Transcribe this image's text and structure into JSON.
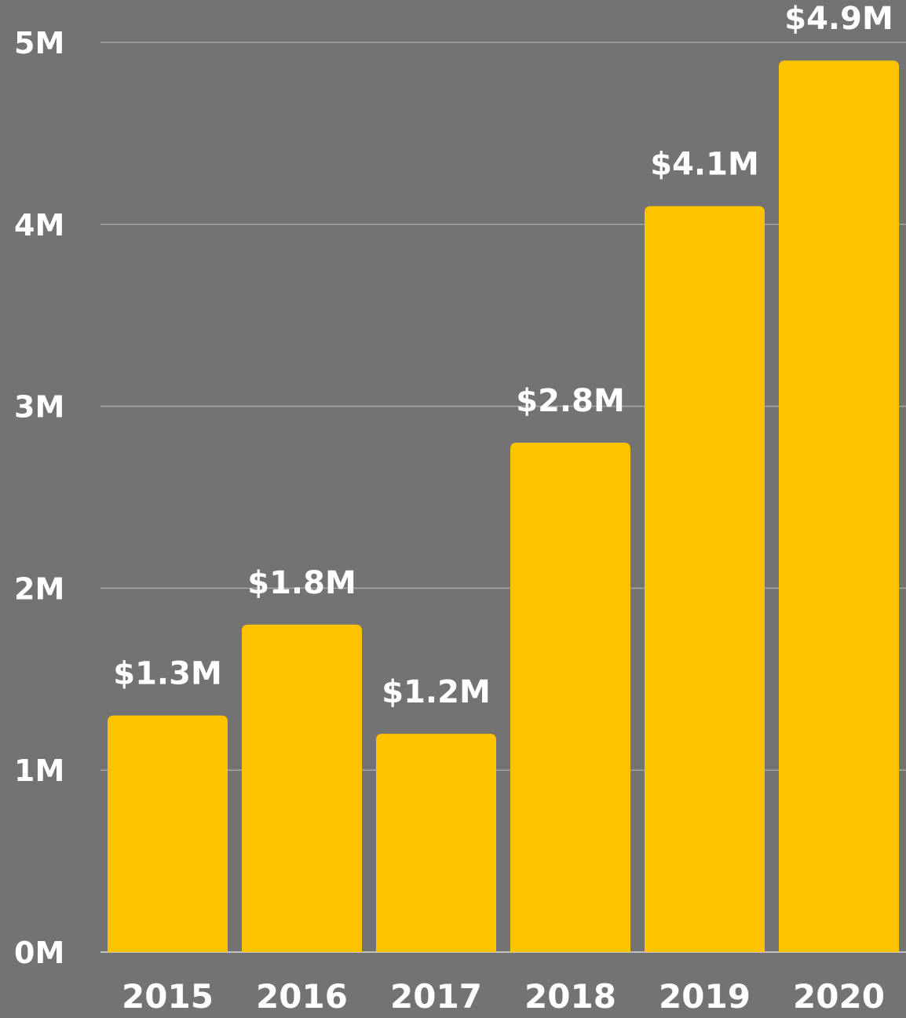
{
  "colors": {
    "background": "#737373",
    "bar": "#FFC400",
    "text": "#ffffff",
    "grid": "#a6a6a6"
  },
  "chart_data": {
    "type": "bar",
    "categories": [
      "2015",
      "2016",
      "2017",
      "2018",
      "2019",
      "2020"
    ],
    "values": [
      1.3,
      1.8,
      1.2,
      2.8,
      4.1,
      4.9
    ],
    "data_labels": [
      "$1.3M",
      "$1.8M",
      "$1.2M",
      "$2.8M",
      "$4.1M",
      "$4.9M"
    ],
    "yticks": [
      0,
      1,
      2,
      3,
      4,
      5
    ],
    "ytick_labels": [
      "0M",
      "1M",
      "2M",
      "3M",
      "4M",
      "5M"
    ],
    "ylim": [
      0,
      5
    ],
    "grid": true,
    "legend": "none"
  }
}
